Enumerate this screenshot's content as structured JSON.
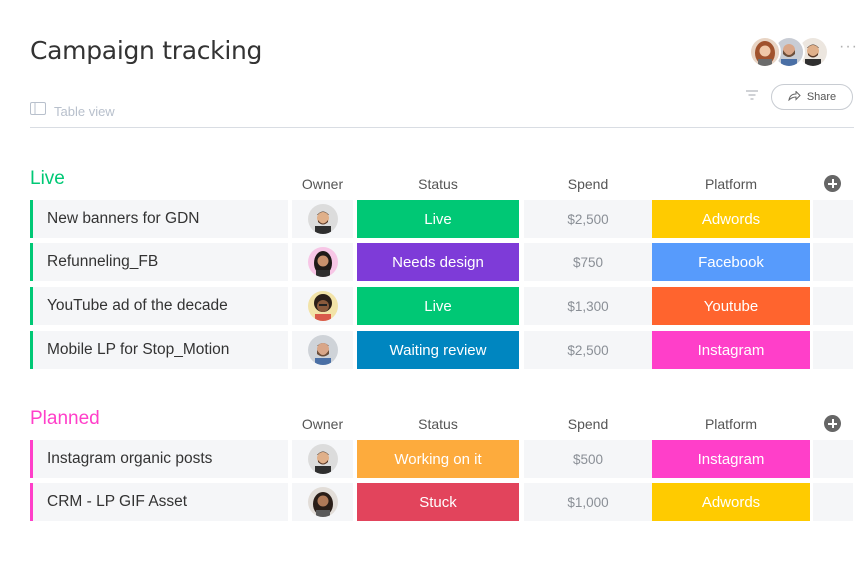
{
  "header": {
    "title": "Campaign tracking",
    "view_label": "Table view",
    "share_label": "Share",
    "more_icon": "···"
  },
  "groups": [
    {
      "title": "Live",
      "color": "#00c875",
      "columns": {
        "owner": "Owner",
        "status": "Status",
        "spend": "Spend",
        "platform": "Platform"
      },
      "rows": [
        {
          "name": "New banners for GDN",
          "status": "Live",
          "status_color": "#00c875",
          "spend": "$2,500",
          "platform": "Adwords",
          "platform_color": "#ffcb00"
        },
        {
          "name": "Refunneling_FB",
          "status": "Needs design",
          "status_color": "#7e3bd8",
          "spend": "$750",
          "platform": "Facebook",
          "platform_color": "#579bfc"
        },
        {
          "name": "YouTube ad of the decade",
          "status": "Live",
          "status_color": "#00c875",
          "spend": "$1,300",
          "platform": "Youtube",
          "platform_color": "#ff642e"
        },
        {
          "name": "Mobile LP for Stop_Motion",
          "status": "Waiting review",
          "status_color": "#0086c0",
          "spend": "$2,500",
          "platform": "Instagram",
          "platform_color": "#ff3fc9"
        }
      ]
    },
    {
      "title": "Planned",
      "color": "#ff3fc9",
      "columns": {
        "owner": "Owner",
        "status": "Status",
        "spend": "Spend",
        "platform": "Platform"
      },
      "rows": [
        {
          "name": "Instagram organic posts",
          "status": "Working on it",
          "status_color": "#fdab3d",
          "spend": "$500",
          "platform": "Instagram",
          "platform_color": "#ff3fc9"
        },
        {
          "name": "CRM - LP GIF Asset",
          "status": "Stuck",
          "status_color": "#e2445c",
          "spend": "$1,000",
          "platform": "Adwords",
          "platform_color": "#ffcb00"
        }
      ]
    }
  ]
}
